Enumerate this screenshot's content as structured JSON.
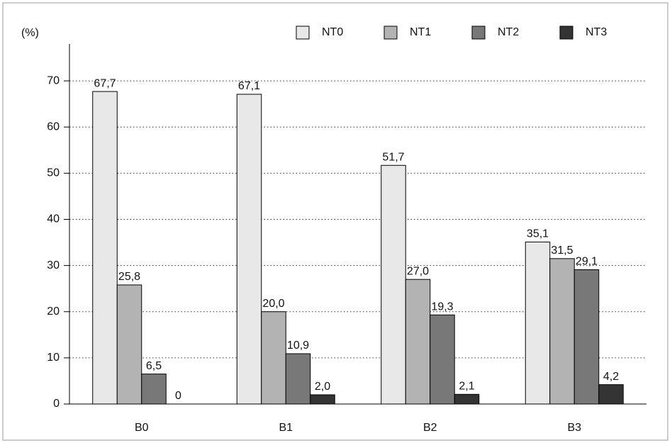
{
  "chart_data": {
    "type": "bar",
    "y_label": "(%)",
    "categories": [
      "B0",
      "B1",
      "B2",
      "B3"
    ],
    "series": [
      {
        "name": "NT0",
        "color": "#e8e8e8",
        "values": [
          67.7,
          67.1,
          51.7,
          35.1
        ],
        "value_labels": [
          "67,7",
          "67,1",
          "51,7",
          "35,1"
        ]
      },
      {
        "name": "NT1",
        "color": "#b3b3b3",
        "values": [
          25.8,
          20.0,
          27.0,
          31.5
        ],
        "value_labels": [
          "25,8",
          "20,0",
          "27,0",
          "31,5"
        ]
      },
      {
        "name": "NT2",
        "color": "#787878",
        "values": [
          6.5,
          10.9,
          19.3,
          29.1
        ],
        "value_labels": [
          "6,5",
          "10,9",
          "19,3",
          "29,1"
        ]
      },
      {
        "name": "NT3",
        "color": "#333333",
        "values": [
          0,
          2.0,
          2.1,
          4.2
        ],
        "value_labels": [
          "0",
          "2,0",
          "2,1",
          "4,2"
        ]
      }
    ],
    "ylim": [
      0,
      78
    ],
    "yticks": [
      0,
      10,
      20,
      30,
      40,
      50,
      60,
      70
    ],
    "grid": true,
    "legend": "top"
  }
}
